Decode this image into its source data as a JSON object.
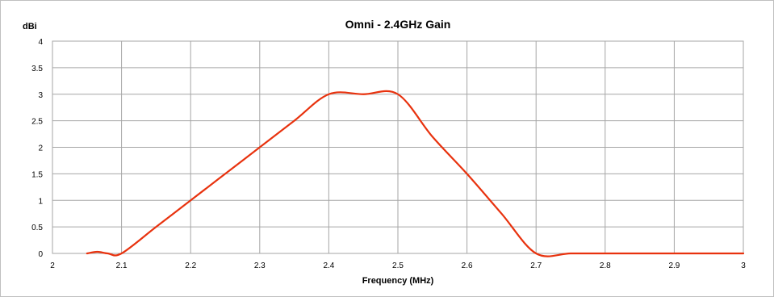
{
  "chart_data": {
    "type": "line",
    "title": "Omni - 2.4GHz Gain",
    "ylabel": "dBi",
    "xlabel": "Frequency (MHz)",
    "xlim": [
      2,
      3
    ],
    "ylim": [
      0,
      4
    ],
    "x_ticks": [
      "2",
      "2.1",
      "2.2",
      "2.3",
      "2.4",
      "2.5",
      "2.6",
      "2.7",
      "2.8",
      "2.9",
      "3"
    ],
    "y_ticks": [
      "0",
      "0.5",
      "1",
      "1.5",
      "2",
      "2.5",
      "3",
      "3.5",
      "4"
    ],
    "grid": true,
    "series": [
      {
        "color": "#e8320e",
        "points": [
          [
            2.05,
            0
          ],
          [
            2.065,
            0.03
          ],
          [
            2.08,
            0
          ],
          [
            2.1,
            0
          ],
          [
            2.15,
            0.5
          ],
          [
            2.2,
            1.0
          ],
          [
            2.25,
            1.5
          ],
          [
            2.3,
            2.0
          ],
          [
            2.35,
            2.5
          ],
          [
            2.4,
            3.0
          ],
          [
            2.45,
            3.0
          ],
          [
            2.5,
            3.0
          ],
          [
            2.55,
            2.2
          ],
          [
            2.6,
            1.5
          ],
          [
            2.65,
            0.75
          ],
          [
            2.7,
            0
          ],
          [
            2.75,
            0
          ],
          [
            2.8,
            0
          ],
          [
            2.85,
            0
          ],
          [
            2.9,
            0
          ],
          [
            2.95,
            0
          ],
          [
            3.0,
            0
          ]
        ]
      }
    ]
  }
}
